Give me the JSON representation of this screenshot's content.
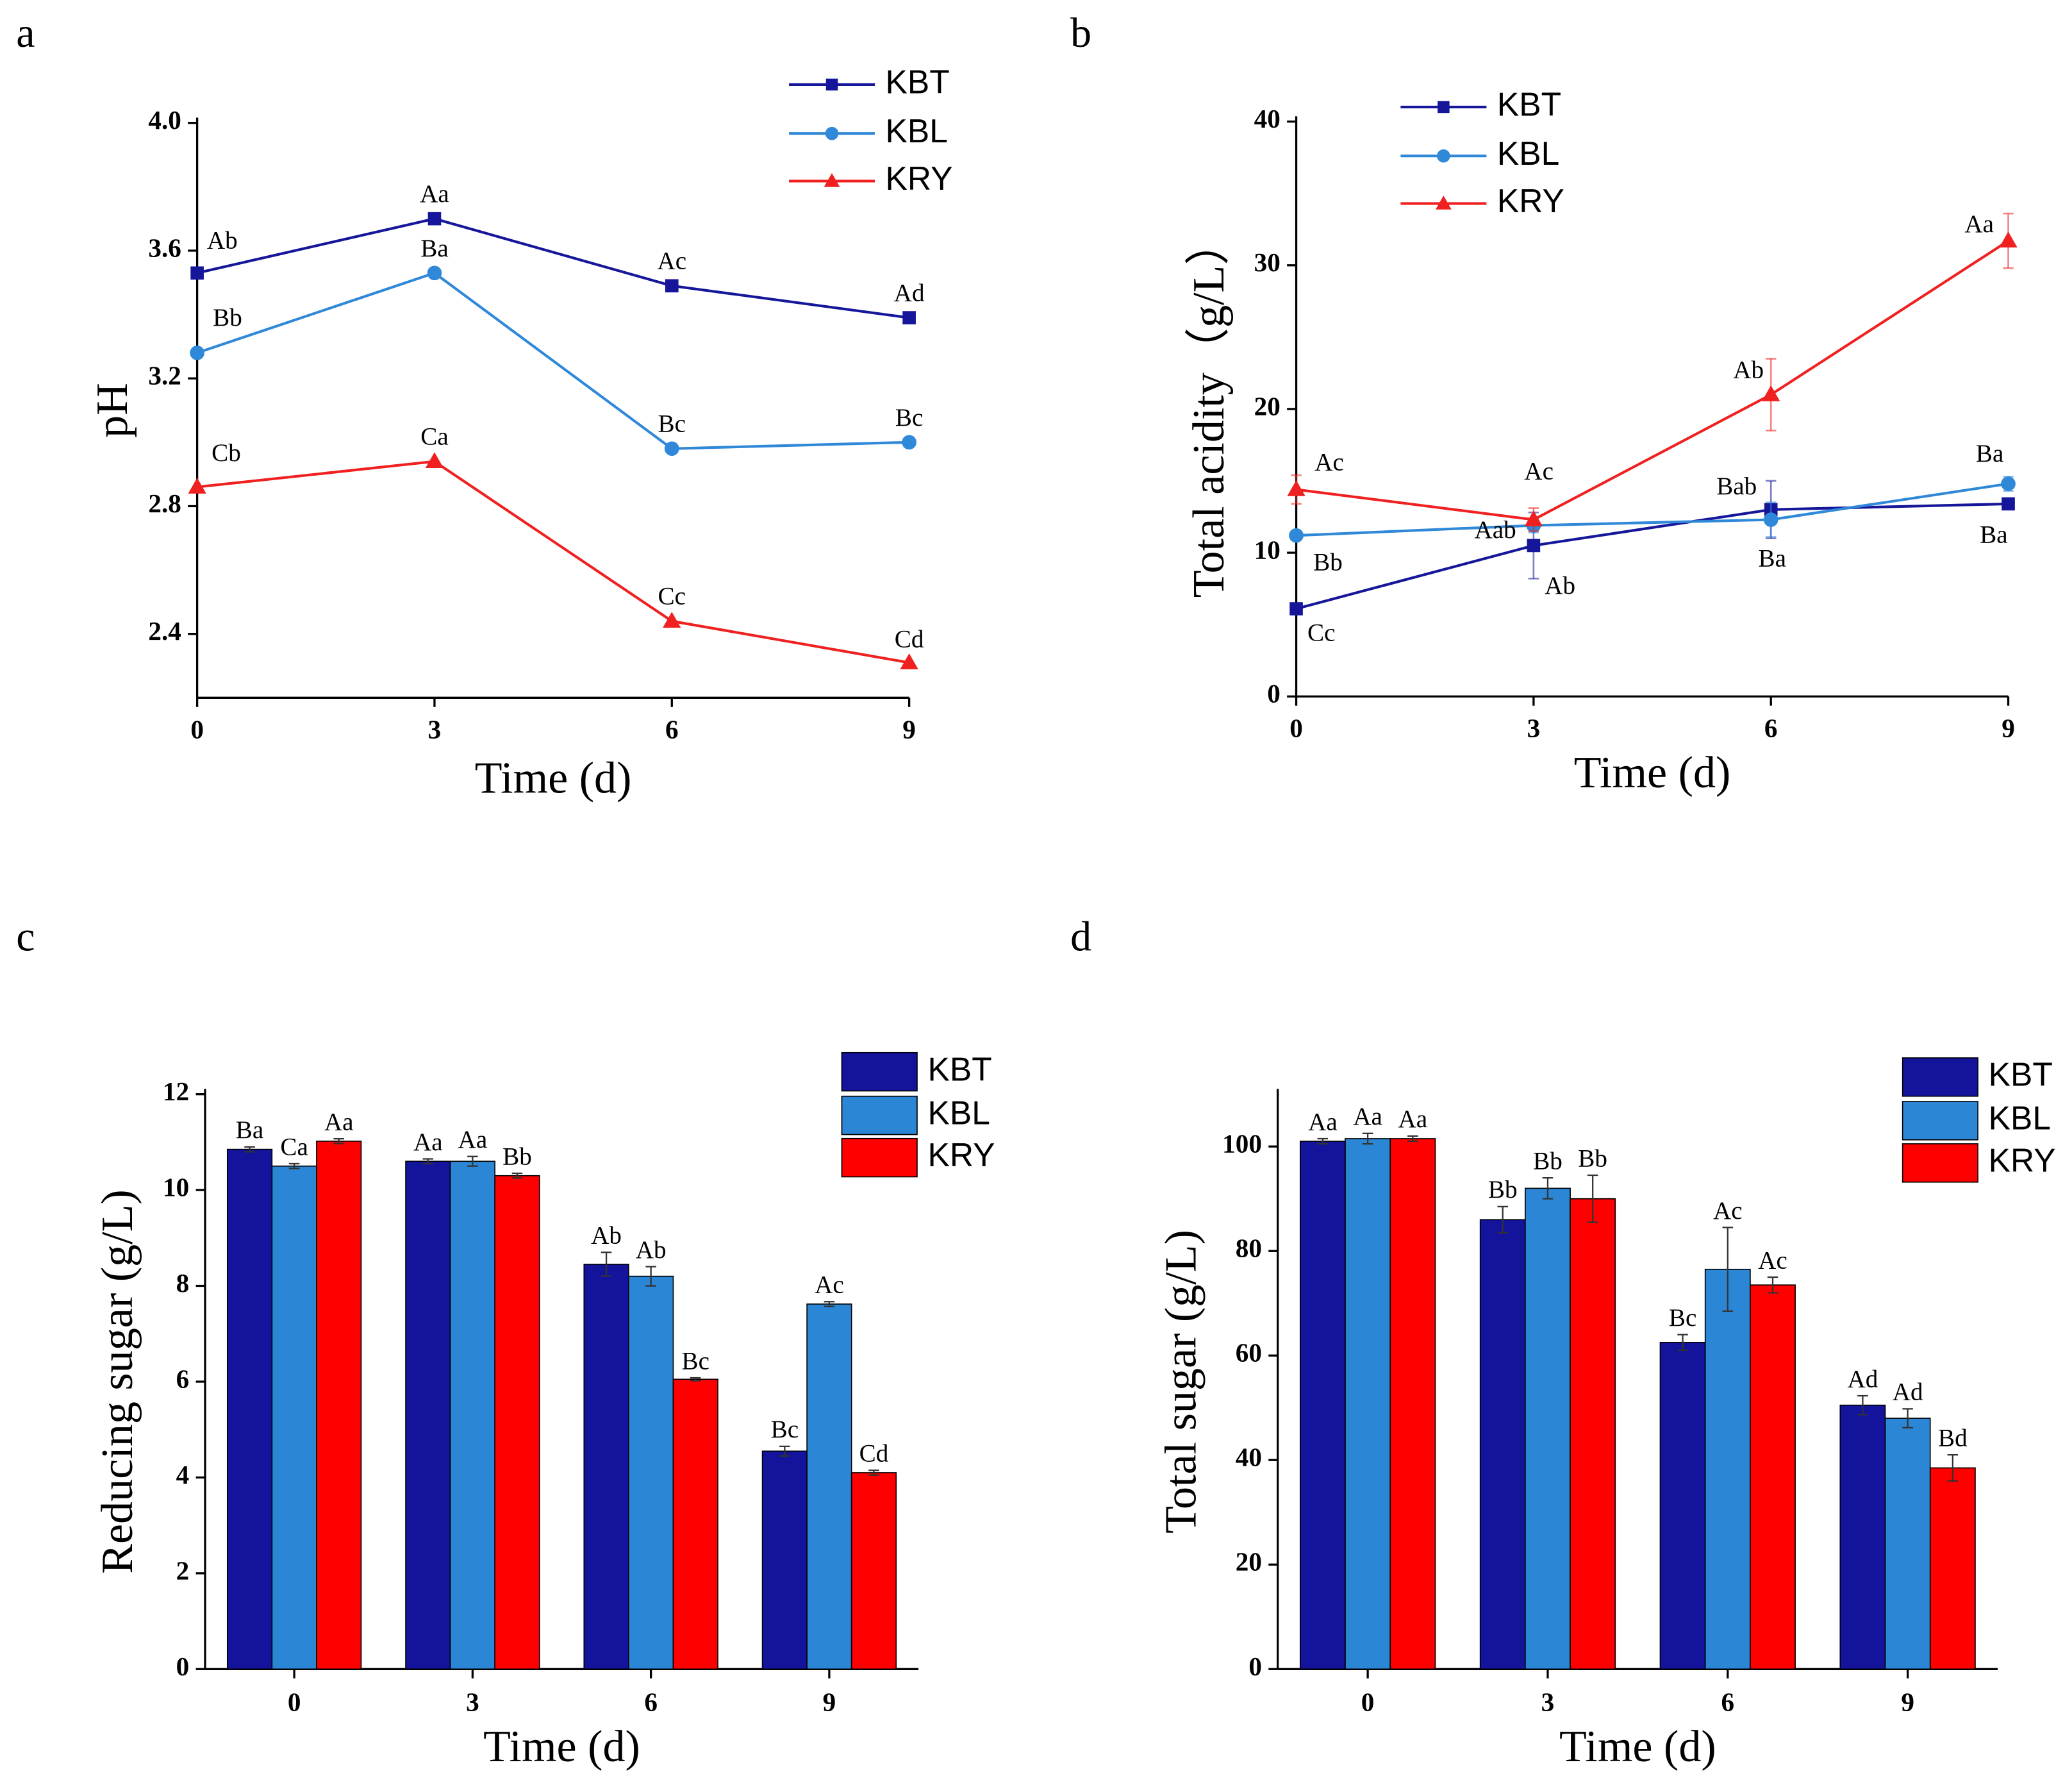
{
  "chart_data": [
    {
      "type": "line",
      "panel": "a",
      "x_label": "Time (d)",
      "y_label": "pH",
      "x": [
        0,
        3,
        6,
        9
      ],
      "xlim": [
        0,
        9
      ],
      "xticks": [
        0,
        3,
        6,
        9
      ],
      "ylim": [
        2.2,
        4.0
      ],
      "yticks": [
        2.4,
        2.8,
        3.2,
        3.6,
        {
          "value": 4.0,
          "label": "4.0"
        }
      ],
      "series": [
        {
          "name": "KBT",
          "color": "#16169a",
          "marker": "square",
          "values": [
            3.53,
            3.7,
            3.49,
            3.39
          ],
          "annotations": [
            "Ab",
            "Aa",
            "Ac",
            "Ad"
          ]
        },
        {
          "name": "KBL",
          "color": "#2f88d8",
          "marker": "circle",
          "values": [
            3.28,
            3.53,
            2.98,
            3.0
          ],
          "annotations": [
            "Bb",
            "Ba",
            "Bc",
            "Bc"
          ]
        },
        {
          "name": "KRY",
          "color": "#f02020",
          "marker": "triangle",
          "values": [
            2.86,
            2.94,
            2.44,
            2.31
          ],
          "annotations": [
            "Cb",
            "Ca",
            "Cc",
            "Cd"
          ]
        }
      ]
    },
    {
      "type": "line",
      "panel": "b",
      "x_label": "Time (d)",
      "y_label": "Total acidity（g/L）",
      "x": [
        0,
        3,
        6,
        9
      ],
      "xlim": [
        0,
        9
      ],
      "xticks": [
        0,
        3,
        6,
        9
      ],
      "ylim": [
        0,
        40
      ],
      "yticks": [
        0,
        10,
        20,
        30,
        40
      ],
      "series": [
        {
          "name": "KBT",
          "color": "#16169a",
          "marker": "square",
          "values": [
            6.1,
            10.5,
            13.0,
            13.4
          ],
          "errors": [
            0.3,
            2.3,
            2.0,
            0.3
          ],
          "annotations": [
            "Cc",
            "Ab",
            "Bab",
            "Ba"
          ]
        },
        {
          "name": "KBL",
          "color": "#2f88d8",
          "marker": "circle",
          "values": [
            11.2,
            11.9,
            12.3,
            14.8
          ],
          "errors": [
            0.3,
            0.5,
            1.2,
            0.5
          ],
          "annotations": [
            "Bb",
            "Aab",
            "Ba",
            "Ba"
          ]
        },
        {
          "name": "KRY",
          "color": "#f02020",
          "marker": "triangle",
          "values": [
            14.4,
            12.3,
            21.0,
            31.7
          ],
          "errors": [
            1.0,
            0.8,
            2.5,
            1.9
          ],
          "annotations": [
            "Ac",
            "Ac",
            "Ab",
            "Aa"
          ]
        }
      ]
    },
    {
      "type": "bar",
      "panel": "c",
      "x_label": "Time (d)",
      "y_label": "Reducing sugar (g/L)",
      "categories": [
        "0",
        "3",
        "6",
        "9"
      ],
      "ylim": [
        0,
        12
      ],
      "yticks": [
        0,
        2,
        4,
        6,
        8,
        10,
        12
      ],
      "series": [
        {
          "name": "KBT",
          "color": "#13139c",
          "values": [
            10.85,
            10.6,
            8.45,
            4.55
          ],
          "errors": [
            0.05,
            0.05,
            0.25,
            0.1
          ],
          "annotations": [
            "Ba",
            "Aa",
            "Ab",
            "Bc"
          ]
        },
        {
          "name": "KBL",
          "color": "#2b86d6",
          "values": [
            10.5,
            10.6,
            8.2,
            7.62
          ],
          "errors": [
            0.05,
            0.1,
            0.2,
            0.05
          ],
          "annotations": [
            "Ca",
            "Aa",
            "Ab",
            "Ac"
          ]
        },
        {
          "name": "KRY",
          "color": "#ff0000",
          "values": [
            11.02,
            10.3,
            6.05,
            4.1
          ],
          "errors": [
            0.05,
            0.05,
            0.03,
            0.05
          ],
          "annotations": [
            "Aa",
            "Bb",
            "Bc",
            "Cd"
          ]
        }
      ]
    },
    {
      "type": "bar",
      "panel": "d",
      "x_label": "Time (d)",
      "y_label": "Total sugar (g/L)",
      "categories": [
        "0",
        "3",
        "6",
        "9"
      ],
      "ylim": [
        0,
        110
      ],
      "yticks": [
        0,
        20,
        40,
        60,
        80,
        100
      ],
      "series": [
        {
          "name": "KBT",
          "color": "#13139c",
          "values": [
            101,
            86,
            62.5,
            50.5
          ],
          "errors": [
            0.5,
            2.5,
            1.5,
            1.8
          ],
          "annotations": [
            "Aa",
            "Bb",
            "Bc",
            "Ad"
          ]
        },
        {
          "name": "KBL",
          "color": "#2b86d6",
          "values": [
            101.5,
            92,
            76.5,
            48
          ],
          "errors": [
            1,
            2,
            8,
            1.8
          ],
          "annotations": [
            "Aa",
            "Bb",
            "Ac",
            "Ad"
          ]
        },
        {
          "name": "KRY",
          "color": "#ff0000",
          "values": [
            101.5,
            90,
            73.5,
            38.5
          ],
          "errors": [
            0.5,
            4.5,
            1.5,
            2.5
          ],
          "annotations": [
            "Aa",
            "Bb",
            "Ac",
            "Bd"
          ]
        }
      ]
    }
  ]
}
